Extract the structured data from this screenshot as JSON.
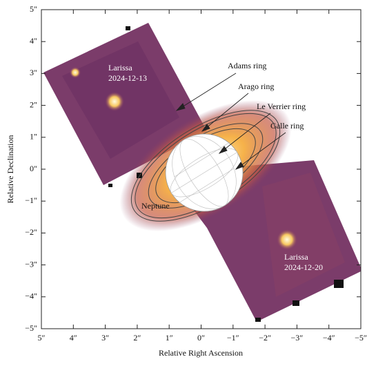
{
  "chart_data": {
    "type": "image",
    "xlabel": "Relative Right Ascension",
    "ylabel": "Relative Declination",
    "xlim": [
      5,
      -5
    ],
    "ylim": [
      -5,
      5
    ],
    "xticks": [
      {
        "value": 5,
        "label": "5″"
      },
      {
        "value": 4,
        "label": "4″"
      },
      {
        "value": 3,
        "label": "3″"
      },
      {
        "value": 2,
        "label": "2″"
      },
      {
        "value": 1,
        "label": "1″"
      },
      {
        "value": 0,
        "label": "0″"
      },
      {
        "value": -1,
        "label": "−1″"
      },
      {
        "value": -2,
        "label": "−2″"
      },
      {
        "value": -3,
        "label": "−3″"
      },
      {
        "value": -4,
        "label": "−4″"
      },
      {
        "value": -5,
        "label": "−5″"
      }
    ],
    "yticks": [
      {
        "value": 5,
        "label": "5″"
      },
      {
        "value": 4,
        "label": "4″"
      },
      {
        "value": 3,
        "label": "3″"
      },
      {
        "value": 2,
        "label": "2″"
      },
      {
        "value": 1,
        "label": "1″"
      },
      {
        "value": 0,
        "label": "0″"
      },
      {
        "value": -1,
        "label": "−1″"
      },
      {
        "value": -2,
        "label": "−2″"
      },
      {
        "value": -3,
        "label": "−3″"
      },
      {
        "value": -4,
        "label": "−4″"
      },
      {
        "value": -5,
        "label": "−5″"
      }
    ],
    "annotations": [
      "Adams ring",
      "Arago ring",
      "Le Verrier ring",
      "Galle ring",
      "Neptune",
      "Larissa",
      "2024-12-13",
      "Larissa",
      "2024-12-20"
    ]
  }
}
